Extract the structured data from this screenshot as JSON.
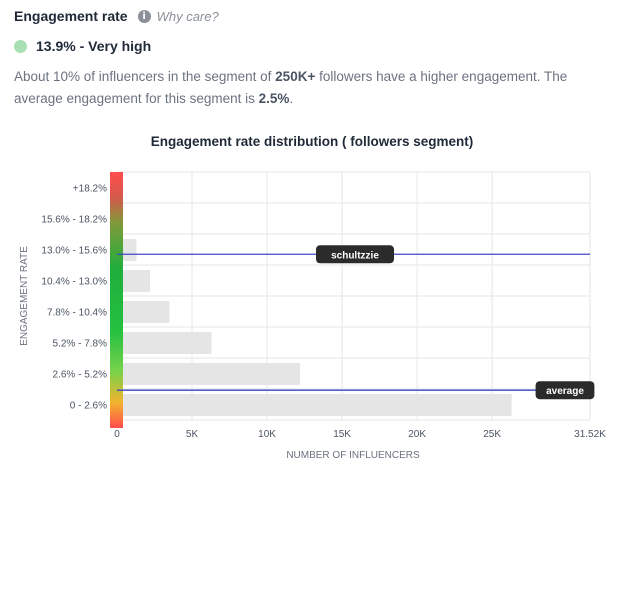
{
  "header": {
    "title": "Engagement rate",
    "info_icon": "info-icon",
    "help_link": "Why care?"
  },
  "rate": {
    "value_label": "13.9% - Very high",
    "dot_color": "#a8dfb3"
  },
  "description": {
    "part1": "About 10% of influencers in the segment of ",
    "segment": "250K+",
    "part2": " followers have a higher engagement. The average engagement for this segment is ",
    "average": "2.5%",
    "part3": "."
  },
  "chart_data": {
    "type": "bar",
    "orientation": "horizontal",
    "title": "Engagement rate distribution ( followers segment)",
    "xlabel": "NUMBER OF INFLUENCERS",
    "ylabel": "ENGAGEMENT RATE",
    "xlim": [
      0,
      31520
    ],
    "x_ticks": [
      0,
      5000,
      10000,
      15000,
      20000,
      25000,
      31520
    ],
    "x_tick_labels": [
      "0",
      "5K",
      "10K",
      "15K",
      "20K",
      "25K",
      "31.52K"
    ],
    "categories": [
      "+18.2%",
      "15.6% - 18.2%",
      "13.0% - 15.6%",
      "10.4% - 13.0%",
      "7.8% - 10.4%",
      "5.2% - 7.8%",
      "2.6% - 5.2%",
      "0 - 2.6%"
    ],
    "values": [
      0,
      400,
      1300,
      2200,
      3500,
      6300,
      12200,
      26300
    ],
    "bar_color": "#e5e5e5",
    "grid": true,
    "markers": [
      {
        "label": "schultzzie",
        "position": "13.9%"
      },
      {
        "label": "average",
        "position": "2.5%"
      }
    ],
    "marker_color": "#3f47c9",
    "gradient_colors": [
      "#ff4d4d",
      "#8f9a3a",
      "#23b43c",
      "#23c43c",
      "#6bd24a",
      "#f2b32e",
      "#ff4d4d"
    ]
  }
}
